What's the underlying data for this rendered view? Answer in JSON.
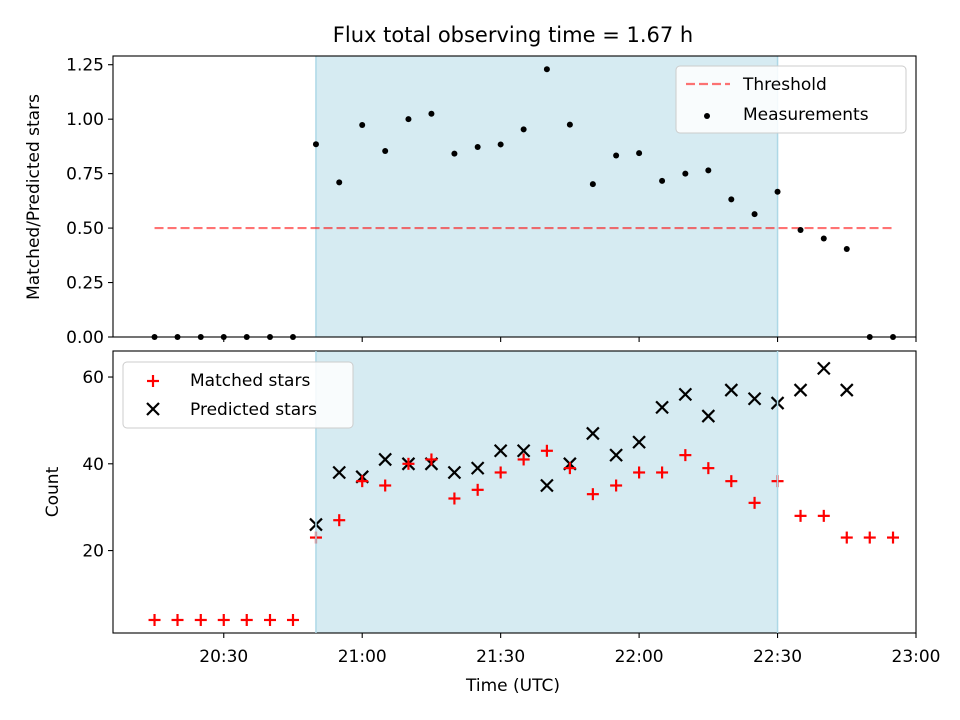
{
  "figure_title": "Flux total observing time = 1.67 h",
  "x_axis": {
    "label": "Time (UTC)",
    "range_hours": [
      20.1,
      23.0
    ],
    "ticks": [
      {
        "value": 20.5,
        "label": "20:30"
      },
      {
        "value": 21.0,
        "label": "21:00"
      },
      {
        "value": 21.5,
        "label": "21:30"
      },
      {
        "value": 22.0,
        "label": "22:00"
      },
      {
        "value": 22.5,
        "label": "22:30"
      },
      {
        "value": 23.0,
        "label": "23:00"
      }
    ]
  },
  "shaded_interval": {
    "start": 20.833,
    "end": 22.5,
    "color": "#add8e6"
  },
  "chart_data": [
    {
      "type": "scatter",
      "ylabel": "Matched/Predicted stars",
      "ylim": [
        0,
        1.29
      ],
      "yticks": [
        {
          "value": 0.0,
          "label": "0.00"
        },
        {
          "value": 0.25,
          "label": "0.25"
        },
        {
          "value": 0.5,
          "label": "0.50"
        },
        {
          "value": 0.75,
          "label": "0.75"
        },
        {
          "value": 1.0,
          "label": "1.00"
        },
        {
          "value": 1.25,
          "label": "1.25"
        }
      ],
      "legend": {
        "placement": "top-right",
        "entries": [
          "Threshold",
          "Measurements"
        ]
      },
      "threshold": {
        "name": "Threshold",
        "value": 0.5,
        "x_range": [
          20.25,
          22.917
        ],
        "color": "#ff0000"
      },
      "series": [
        {
          "name": "Measurements",
          "marker": "dot",
          "color": "#000000",
          "x": [
            20.25,
            20.333,
            20.417,
            20.5,
            20.583,
            20.667,
            20.75,
            20.833,
            20.917,
            21.0,
            21.083,
            21.167,
            21.25,
            21.333,
            21.417,
            21.5,
            21.583,
            21.667,
            21.75,
            21.833,
            21.917,
            22.0,
            22.083,
            22.167,
            22.25,
            22.333,
            22.417,
            22.5,
            22.583,
            22.667,
            22.75,
            22.833,
            22.917
          ],
          "y": [
            0.0,
            0.0,
            0.0,
            0.0,
            0.0,
            0.0,
            0.0,
            0.885,
            0.71,
            0.973,
            0.854,
            1.0,
            1.025,
            0.842,
            0.872,
            0.884,
            0.953,
            1.229,
            0.975,
            0.702,
            0.833,
            0.844,
            0.717,
            0.75,
            0.765,
            0.632,
            0.564,
            0.667,
            0.491,
            0.452,
            0.404,
            0.0,
            0.0
          ]
        }
      ]
    },
    {
      "type": "scatter",
      "ylabel": "Count",
      "ylim": [
        1,
        66
      ],
      "yticks": [
        {
          "value": 20,
          "label": "20"
        },
        {
          "value": 40,
          "label": "40"
        },
        {
          "value": 60,
          "label": "60"
        }
      ],
      "legend": {
        "placement": "top-left",
        "entries": [
          "Matched stars",
          "Predicted stars"
        ]
      },
      "series": [
        {
          "name": "Matched stars",
          "marker": "plus",
          "color": "#ff0000",
          "x": [
            20.25,
            20.333,
            20.417,
            20.5,
            20.583,
            20.667,
            20.75,
            20.833,
            20.917,
            21.0,
            21.083,
            21.167,
            21.25,
            21.333,
            21.417,
            21.5,
            21.583,
            21.667,
            21.75,
            21.833,
            21.917,
            22.0,
            22.083,
            22.167,
            22.25,
            22.333,
            22.417,
            22.5,
            22.583,
            22.667,
            22.75,
            22.833,
            22.917
          ],
          "y": [
            4,
            4,
            4,
            4,
            4,
            4,
            4,
            23,
            27,
            36,
            35,
            40,
            41,
            32,
            34,
            38,
            41,
            43,
            39,
            33,
            35,
            38,
            38,
            42,
            39,
            36,
            31,
            36,
            28,
            28,
            23,
            23,
            23
          ]
        },
        {
          "name": "Predicted stars",
          "marker": "x",
          "color": "#000000",
          "x": [
            20.833,
            20.917,
            21.0,
            21.083,
            21.167,
            21.25,
            21.333,
            21.417,
            21.5,
            21.583,
            21.667,
            21.75,
            21.833,
            21.917,
            22.0,
            22.083,
            22.167,
            22.25,
            22.333,
            22.417,
            22.5,
            22.583,
            22.667,
            22.75
          ],
          "y": [
            26,
            38,
            37,
            41,
            40,
            40,
            38,
            39,
            43,
            43,
            35,
            40,
            47,
            42,
            45,
            53,
            56,
            51,
            57,
            55,
            54,
            57,
            62,
            57
          ]
        }
      ]
    }
  ]
}
